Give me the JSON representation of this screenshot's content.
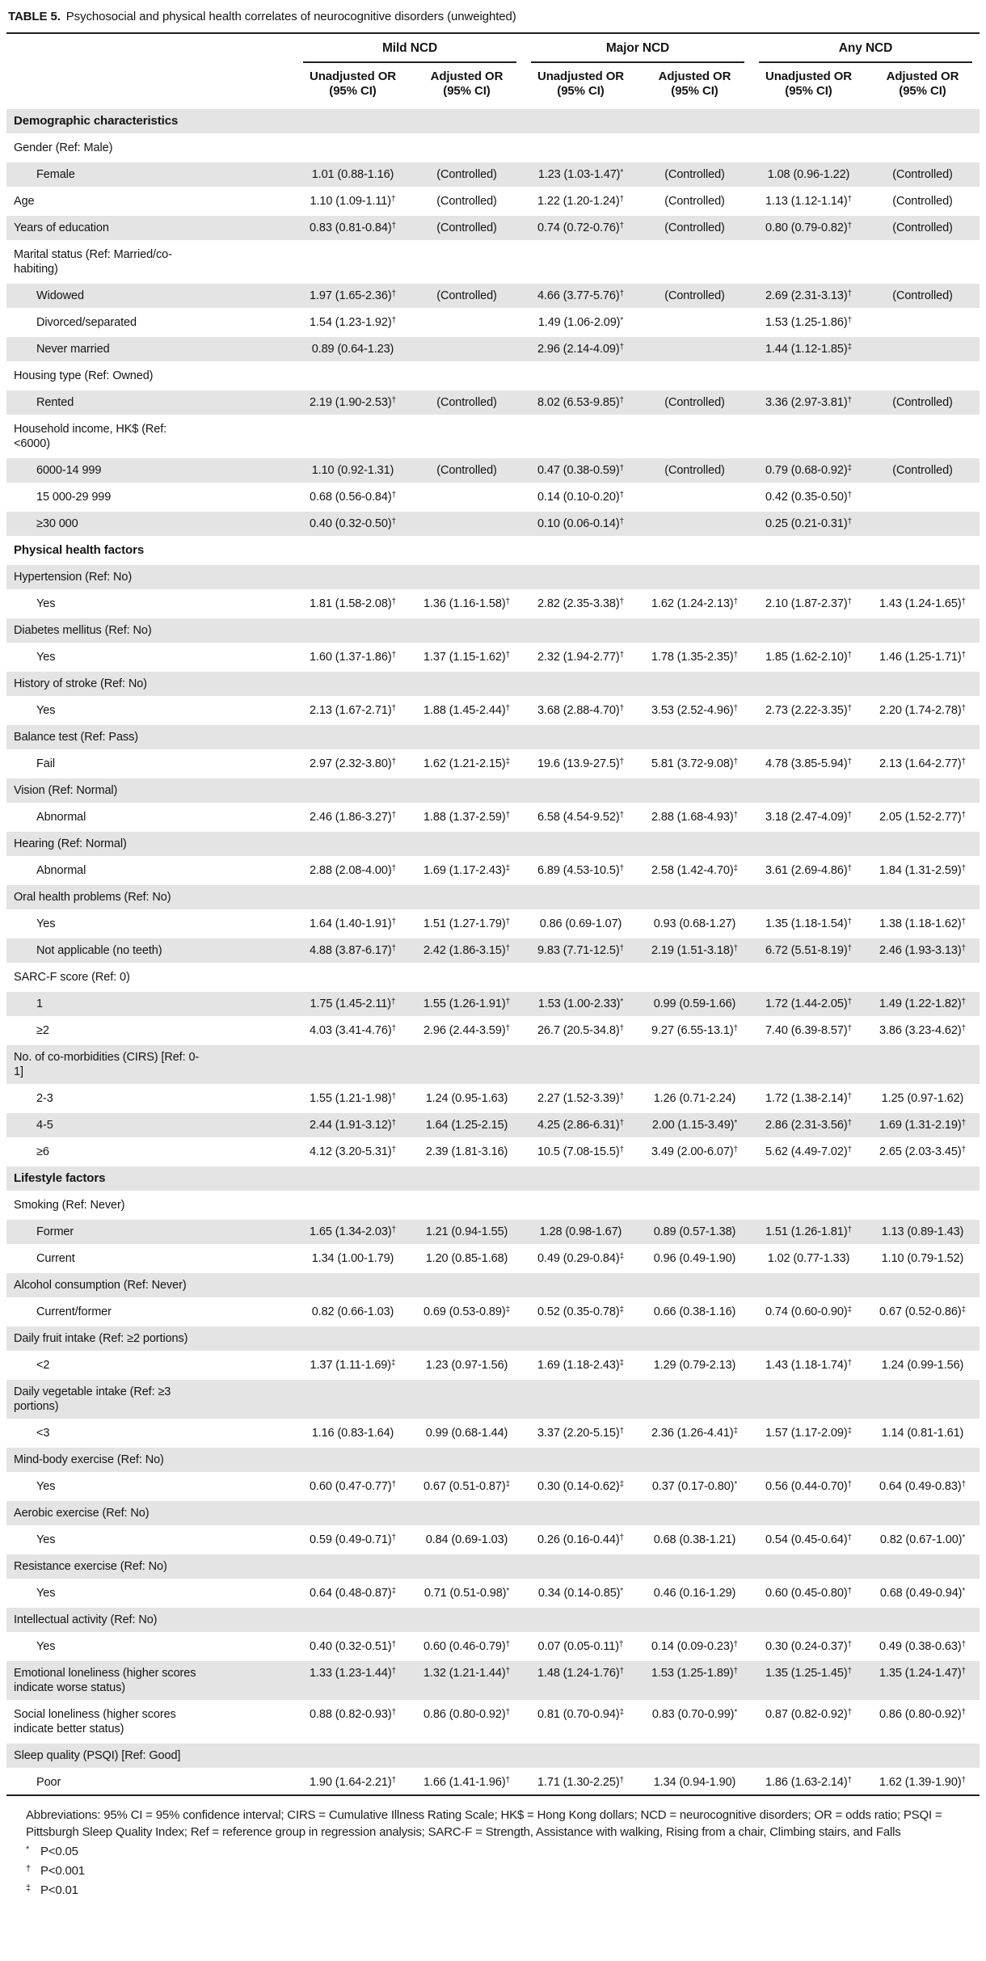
{
  "title": {
    "label": "TABLE 5.",
    "caption": "Psychosocial and physical health correlates of neurocognitive disorders (unweighted)"
  },
  "colors": {
    "stripe": "#e4e4e4",
    "rule": "#1f1f1f",
    "text": "#141414"
  },
  "table": {
    "header": {
      "groups": [
        "Mild NCD",
        "Major NCD",
        "Any NCD"
      ],
      "sub": [
        {
          "line1": "Unadjusted OR",
          "line2": "(95% CI)"
        },
        {
          "line1": "Adjusted OR",
          "line2": "(95% CI)"
        },
        {
          "line1": "Unadjusted OR",
          "line2": "(95% CI)"
        },
        {
          "line1": "Adjusted OR",
          "line2": "(95% CI)"
        },
        {
          "line1": "Unadjusted OR",
          "line2": "(95% CI)"
        },
        {
          "line1": "Adjusted OR",
          "line2": "(95% CI)"
        }
      ]
    },
    "rows": [
      {
        "type": "section",
        "indent": 0,
        "label": "Demographic characteristics",
        "cells": [
          "",
          "",
          "",
          "",
          "",
          ""
        ]
      },
      {
        "type": "group",
        "indent": 0,
        "label": "Gender (Ref: Male)",
        "cells": [
          "",
          "",
          "",
          "",
          "",
          ""
        ]
      },
      {
        "type": "data",
        "indent": 1,
        "label": "Female",
        "cells": [
          "1.01 (0.88-1.16)",
          "(Controlled)",
          "1.23 (1.03-1.47)*",
          "(Controlled)",
          "1.08 (0.96-1.22)",
          "(Controlled)"
        ]
      },
      {
        "type": "data",
        "indent": 0,
        "label": "Age",
        "cells": [
          "1.10 (1.09-1.11)†",
          "(Controlled)",
          "1.22 (1.20-1.24)†",
          "(Controlled)",
          "1.13 (1.12-1.14)†",
          "(Controlled)"
        ]
      },
      {
        "type": "data",
        "indent": 0,
        "label": "Years of education",
        "cells": [
          "0.83 (0.81-0.84)†",
          "(Controlled)",
          "0.74 (0.72-0.76)†",
          "(Controlled)",
          "0.80 (0.79-0.82)†",
          "(Controlled)"
        ]
      },
      {
        "type": "group",
        "indent": 0,
        "label": "Marital status (Ref: Married/co-habiting)",
        "cells": [
          "",
          "",
          "",
          "",
          "",
          ""
        ]
      },
      {
        "type": "data",
        "indent": 1,
        "label": "Widowed",
        "cells": [
          "1.97 (1.65-2.36)†",
          "(Controlled)",
          "4.66 (3.77-5.76)†",
          "(Controlled)",
          "2.69 (2.31-3.13)†",
          "(Controlled)"
        ]
      },
      {
        "type": "data",
        "indent": 1,
        "label": "Divorced/separated",
        "cells": [
          "1.54 (1.23-1.92)†",
          "",
          "1.49 (1.06-2.09)*",
          "",
          "1.53 (1.25-1.86)†",
          ""
        ]
      },
      {
        "type": "data",
        "indent": 1,
        "label": "Never married",
        "cells": [
          "0.89 (0.64-1.23)",
          "",
          "2.96 (2.14-4.09)†",
          "",
          "1.44 (1.12-1.85)‡",
          ""
        ]
      },
      {
        "type": "group",
        "indent": 0,
        "label": "Housing type (Ref: Owned)",
        "cells": [
          "",
          "",
          "",
          "",
          "",
          ""
        ]
      },
      {
        "type": "data",
        "indent": 1,
        "label": "Rented",
        "cells": [
          "2.19 (1.90-2.53)†",
          "(Controlled)",
          "8.02 (6.53-9.85)†",
          "(Controlled)",
          "3.36 (2.97-3.81)†",
          "(Controlled)"
        ]
      },
      {
        "type": "group",
        "indent": 0,
        "label": "Household income, HK$ (Ref: <6000)",
        "cells": [
          "",
          "",
          "",
          "",
          "",
          ""
        ]
      },
      {
        "type": "data",
        "indent": 1,
        "label": "6000-14 999",
        "cells": [
          "1.10 (0.92-1.31)",
          "(Controlled)",
          "0.47 (0.38-0.59)†",
          "(Controlled)",
          "0.79 (0.68-0.92)‡",
          "(Controlled)"
        ]
      },
      {
        "type": "data",
        "indent": 1,
        "label": "15 000-29 999",
        "cells": [
          "0.68 (0.56-0.84)†",
          "",
          "0.14 (0.10-0.20)†",
          "",
          "0.42 (0.35-0.50)†",
          ""
        ]
      },
      {
        "type": "data",
        "indent": 1,
        "label": "≥30 000",
        "cells": [
          "0.40 (0.32-0.50)†",
          "",
          "0.10 (0.06-0.14)†",
          "",
          "0.25 (0.21-0.31)†",
          ""
        ]
      },
      {
        "type": "section",
        "indent": 0,
        "label": "Physical health factors",
        "cells": [
          "",
          "",
          "",
          "",
          "",
          ""
        ]
      },
      {
        "type": "group",
        "indent": 0,
        "label": "Hypertension (Ref: No)",
        "cells": [
          "",
          "",
          "",
          "",
          "",
          ""
        ]
      },
      {
        "type": "data",
        "indent": 1,
        "label": "Yes",
        "cells": [
          "1.81 (1.58-2.08)†",
          "1.36 (1.16-1.58)†",
          "2.82 (2.35-3.38)†",
          "1.62 (1.24-2.13)†",
          "2.10 (1.87-2.37)†",
          "1.43 (1.24-1.65)†"
        ]
      },
      {
        "type": "group",
        "indent": 0,
        "label": "Diabetes mellitus (Ref: No)",
        "cells": [
          "",
          "",
          "",
          "",
          "",
          ""
        ]
      },
      {
        "type": "data",
        "indent": 1,
        "label": "Yes",
        "cells": [
          "1.60 (1.37-1.86)†",
          "1.37 (1.15-1.62)†",
          "2.32 (1.94-2.77)†",
          "1.78 (1.35-2.35)†",
          "1.85 (1.62-2.10)†",
          "1.46 (1.25-1.71)†"
        ]
      },
      {
        "type": "group",
        "indent": 0,
        "label": "History of stroke (Ref: No)",
        "cells": [
          "",
          "",
          "",
          "",
          "",
          ""
        ]
      },
      {
        "type": "data",
        "indent": 1,
        "label": "Yes",
        "cells": [
          "2.13 (1.67-2.71)†",
          "1.88 (1.45-2.44)†",
          "3.68 (2.88-4.70)†",
          "3.53 (2.52-4.96)†",
          "2.73 (2.22-3.35)†",
          "2.20 (1.74-2.78)†"
        ]
      },
      {
        "type": "group",
        "indent": 0,
        "label": "Balance test (Ref: Pass)",
        "cells": [
          "",
          "",
          "",
          "",
          "",
          ""
        ]
      },
      {
        "type": "data",
        "indent": 1,
        "label": "Fail",
        "cells": [
          "2.97 (2.32-3.80)†",
          "1.62 (1.21-2.15)‡",
          "19.6 (13.9-27.5)†",
          "5.81 (3.72-9.08)†",
          "4.78 (3.85-5.94)†",
          "2.13 (1.64-2.77)†"
        ]
      },
      {
        "type": "group",
        "indent": 0,
        "label": "Vision (Ref: Normal)",
        "cells": [
          "",
          "",
          "",
          "",
          "",
          ""
        ]
      },
      {
        "type": "data",
        "indent": 1,
        "label": "Abnormal",
        "cells": [
          "2.46 (1.86-3.27)†",
          "1.88 (1.37-2.59)†",
          "6.58 (4.54-9.52)†",
          "2.88 (1.68-4.93)†",
          "3.18 (2.47-4.09)†",
          "2.05 (1.52-2.77)†"
        ]
      },
      {
        "type": "group",
        "indent": 0,
        "label": "Hearing (Ref: Normal)",
        "cells": [
          "",
          "",
          "",
          "",
          "",
          ""
        ]
      },
      {
        "type": "data",
        "indent": 1,
        "label": "Abnormal",
        "cells": [
          "2.88 (2.08-4.00)†",
          "1.69 (1.17-2.43)‡",
          "6.89 (4.53-10.5)†",
          "2.58 (1.42-4.70)‡",
          "3.61 (2.69-4.86)†",
          "1.84 (1.31-2.59)†"
        ]
      },
      {
        "type": "group",
        "indent": 0,
        "label": "Oral health problems (Ref: No)",
        "cells": [
          "",
          "",
          "",
          "",
          "",
          ""
        ]
      },
      {
        "type": "data",
        "indent": 1,
        "label": "Yes",
        "cells": [
          "1.64 (1.40-1.91)†",
          "1.51 (1.27-1.79)†",
          "0.86 (0.69-1.07)",
          "0.93 (0.68-1.27)",
          "1.35 (1.18-1.54)†",
          "1.38 (1.18-1.62)†"
        ]
      },
      {
        "type": "data",
        "indent": 1,
        "label": "Not applicable (no teeth)",
        "cells": [
          "4.88 (3.87-6.17)†",
          "2.42 (1.86-3.15)†",
          "9.83 (7.71-12.5)†",
          "2.19 (1.51-3.18)†",
          "6.72 (5.51-8.19)†",
          "2.46 (1.93-3.13)†"
        ]
      },
      {
        "type": "group",
        "indent": 0,
        "label": "SARC-F score (Ref: 0)",
        "cells": [
          "",
          "",
          "",
          "",
          "",
          ""
        ]
      },
      {
        "type": "data",
        "indent": 1,
        "label": "1",
        "cells": [
          "1.75 (1.45-2.11)†",
          "1.55 (1.26-1.91)†",
          "1.53 (1.00-2.33)*",
          "0.99 (0.59-1.66)",
          "1.72 (1.44-2.05)†",
          "1.49 (1.22-1.82)†"
        ]
      },
      {
        "type": "data",
        "indent": 1,
        "label": "≥2",
        "cells": [
          "4.03 (3.41-4.76)†",
          "2.96 (2.44-3.59)†",
          "26.7 (20.5-34.8)†",
          "9.27 (6.55-13.1)†",
          "7.40 (6.39-8.57)†",
          "3.86 (3.23-4.62)†"
        ]
      },
      {
        "type": "group",
        "indent": 0,
        "label": "No. of co-morbidities (CIRS) [Ref: 0-1]",
        "cells": [
          "",
          "",
          "",
          "",
          "",
          ""
        ]
      },
      {
        "type": "data",
        "indent": 1,
        "label": "2-3",
        "cells": [
          "1.55 (1.21-1.98)†",
          "1.24 (0.95-1.63)",
          "2.27 (1.52-3.39)†",
          "1.26 (0.71-2.24)",
          "1.72 (1.38-2.14)†",
          "1.25 (0.97-1.62)"
        ]
      },
      {
        "type": "data",
        "indent": 1,
        "label": "4-5",
        "cells": [
          "2.44 (1.91-3.12)†",
          "1.64 (1.25-2.15)",
          "4.25 (2.86-6.31)†",
          "2.00 (1.15-3.49)*",
          "2.86 (2.31-3.56)†",
          "1.69 (1.31-2.19)†"
        ]
      },
      {
        "type": "data",
        "indent": 1,
        "label": "≥6",
        "cells": [
          "4.12 (3.20-5.31)†",
          "2.39 (1.81-3.16)",
          "10.5 (7.08-15.5)†",
          "3.49 (2.00-6.07)†",
          "5.62 (4.49-7.02)†",
          "2.65 (2.03-3.45)†"
        ]
      },
      {
        "type": "section",
        "indent": 0,
        "label": "Lifestyle factors",
        "cells": [
          "",
          "",
          "",
          "",
          "",
          ""
        ]
      },
      {
        "type": "group",
        "indent": 0,
        "label": "Smoking (Ref: Never)",
        "cells": [
          "",
          "",
          "",
          "",
          "",
          ""
        ]
      },
      {
        "type": "data",
        "indent": 1,
        "label": "Former",
        "cells": [
          "1.65 (1.34-2.03)†",
          "1.21 (0.94-1.55)",
          "1.28 (0.98-1.67)",
          "0.89 (0.57-1.38)",
          "1.51 (1.26-1.81)†",
          "1.13 (0.89-1.43)"
        ]
      },
      {
        "type": "data",
        "indent": 1,
        "label": "Current",
        "cells": [
          "1.34 (1.00-1.79)",
          "1.20 (0.85-1.68)",
          "0.49 (0.29-0.84)‡",
          "0.96 (0.49-1.90)",
          "1.02 (0.77-1.33)",
          "1.10 (0.79-1.52)"
        ]
      },
      {
        "type": "group",
        "indent": 0,
        "label": "Alcohol consumption (Ref: Never)",
        "cells": [
          "",
          "",
          "",
          "",
          "",
          ""
        ]
      },
      {
        "type": "data",
        "indent": 1,
        "label": "Current/former",
        "cells": [
          "0.82 (0.66-1.03)",
          "0.69 (0.53-0.89)‡",
          "0.52 (0.35-0.78)‡",
          "0.66 (0.38-1.16)",
          "0.74 (0.60-0.90)‡",
          "0.67 (0.52-0.86)‡"
        ]
      },
      {
        "type": "group",
        "indent": 0,
        "label": "Daily fruit intake (Ref: ≥2 portions)",
        "cells": [
          "",
          "",
          "",
          "",
          "",
          ""
        ]
      },
      {
        "type": "data",
        "indent": 1,
        "label": "<2",
        "cells": [
          "1.37 (1.11-1.69)‡",
          "1.23 (0.97-1.56)",
          "1.69 (1.18-2.43)‡",
          "1.29 (0.79-2.13)",
          "1.43 (1.18-1.74)†",
          "1.24 (0.99-1.56)"
        ]
      },
      {
        "type": "group",
        "indent": 0,
        "label": "Daily vegetable intake (Ref: ≥3 portions)",
        "cells": [
          "",
          "",
          "",
          "",
          "",
          ""
        ]
      },
      {
        "type": "data",
        "indent": 1,
        "label": "<3",
        "cells": [
          "1.16 (0.83-1.64)",
          "0.99 (0.68-1.44)",
          "3.37 (2.20-5.15)†",
          "2.36 (1.26-4.41)‡",
          "1.57 (1.17-2.09)‡",
          "1.14 (0.81-1.61)"
        ]
      },
      {
        "type": "group",
        "indent": 0,
        "label": "Mind-body exercise (Ref: No)",
        "cells": [
          "",
          "",
          "",
          "",
          "",
          ""
        ]
      },
      {
        "type": "data",
        "indent": 1,
        "label": "Yes",
        "cells": [
          "0.60 (0.47-0.77)†",
          "0.67 (0.51-0.87)‡",
          "0.30 (0.14-0.62)‡",
          "0.37 (0.17-0.80)*",
          "0.56 (0.44-0.70)†",
          "0.64 (0.49-0.83)†"
        ]
      },
      {
        "type": "group",
        "indent": 0,
        "label": "Aerobic exercise (Ref: No)",
        "cells": [
          "",
          "",
          "",
          "",
          "",
          ""
        ]
      },
      {
        "type": "data",
        "indent": 1,
        "label": "Yes",
        "cells": [
          "0.59 (0.49-0.71)†",
          "0.84 (0.69-1.03)",
          "0.26 (0.16-0.44)†",
          "0.68 (0.38-1.21)",
          "0.54 (0.45-0.64)†",
          "0.82 (0.67-1.00)*"
        ]
      },
      {
        "type": "group",
        "indent": 0,
        "label": "Resistance exercise (Ref: No)",
        "cells": [
          "",
          "",
          "",
          "",
          "",
          ""
        ]
      },
      {
        "type": "data",
        "indent": 1,
        "label": "Yes",
        "cells": [
          "0.64 (0.48-0.87)‡",
          "0.71 (0.51-0.98)*",
          "0.34 (0.14-0.85)*",
          "0.46 (0.16-1.29)",
          "0.60 (0.45-0.80)†",
          "0.68 (0.49-0.94)*"
        ]
      },
      {
        "type": "group",
        "indent": 0,
        "label": "Intellectual activity (Ref: No)",
        "cells": [
          "",
          "",
          "",
          "",
          "",
          ""
        ]
      },
      {
        "type": "data",
        "indent": 1,
        "label": "Yes",
        "cells": [
          "0.40 (0.32-0.51)†",
          "0.60 (0.46-0.79)†",
          "0.07 (0.05-0.11)†",
          "0.14 (0.09-0.23)†",
          "0.30 (0.24-0.37)†",
          "0.49 (0.38-0.63)†"
        ]
      },
      {
        "type": "data",
        "indent": 0,
        "label": "Emotional loneliness (higher scores indicate worse status)",
        "cells": [
          "1.33 (1.23-1.44)†",
          "1.32 (1.21-1.44)†",
          "1.48 (1.24-1.76)†",
          "1.53 (1.25-1.89)†",
          "1.35 (1.25-1.45)†",
          "1.35 (1.24-1.47)†"
        ]
      },
      {
        "type": "data",
        "indent": 0,
        "label": "Social loneliness (higher scores indicate better status)",
        "cells": [
          "0.88 (0.82-0.93)†",
          "0.86 (0.80-0.92)†",
          "0.81 (0.70-0.94)‡",
          "0.83 (0.70-0.99)*",
          "0.87 (0.82-0.92)†",
          "0.86 (0.80-0.92)†"
        ]
      },
      {
        "type": "group",
        "indent": 0,
        "label": "Sleep quality (PSQI) [Ref: Good]",
        "cells": [
          "",
          "",
          "",
          "",
          "",
          ""
        ]
      },
      {
        "type": "data",
        "indent": 1,
        "label": "Poor",
        "cells": [
          "1.90 (1.64-2.21)†",
          "1.66 (1.41-1.96)†",
          "1.71 (1.30-2.25)†",
          "1.34 (0.94-1.90)",
          "1.86 (1.63-2.14)†",
          "1.62 (1.39-1.90)†"
        ]
      }
    ]
  },
  "footnotes": {
    "abbreviations": "Abbreviations: 95% CI = 95% confidence interval; CIRS = Cumulative Illness Rating Scale; HK$ = Hong Kong dollars; NCD = neurocognitive disorders; OR = odds ratio; PSQI = Pittsburgh Sleep Quality Index; Ref = reference group in regression analysis; SARC-F = Strength, Assistance with walking, Rising from a chair, Climbing stairs, and Falls",
    "significance": [
      {
        "symbol": "*",
        "text": "P<0.05"
      },
      {
        "symbol": "†",
        "text": "P<0.001"
      },
      {
        "symbol": "‡",
        "text": "P<0.01"
      }
    ]
  }
}
